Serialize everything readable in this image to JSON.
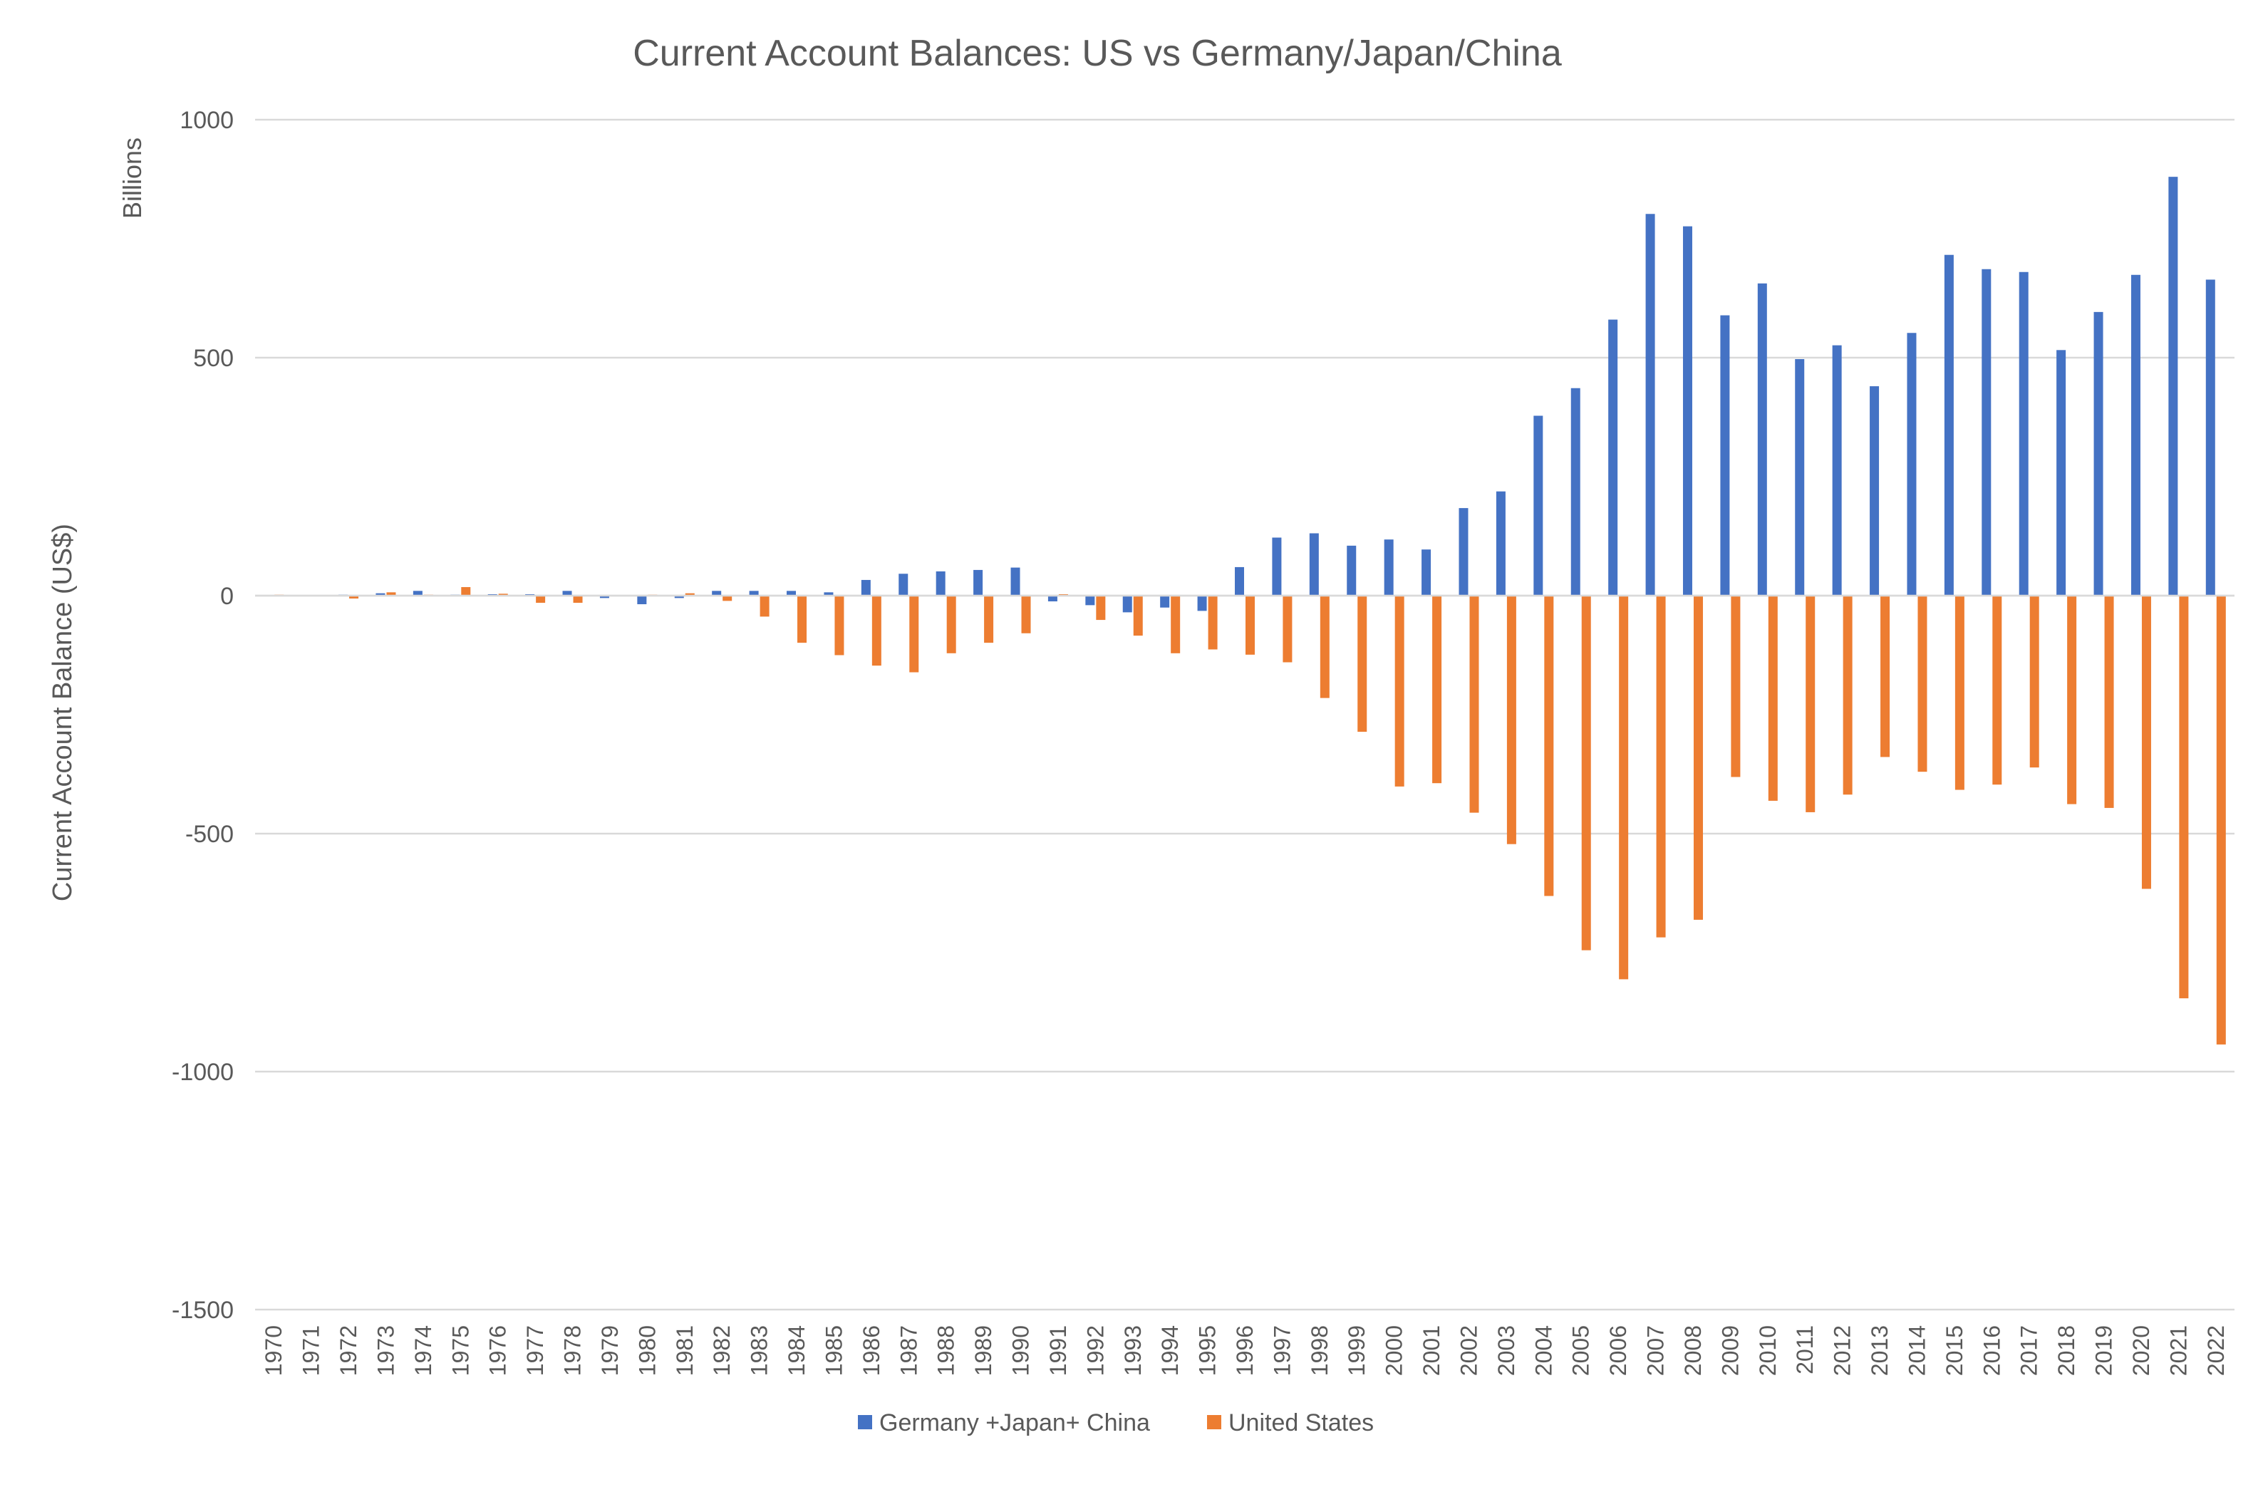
{
  "chart_data": {
    "type": "bar",
    "title": "Current Account Balances: US vs Germany/Japan/China",
    "ylabel": "Current Account Balance (US$)",
    "yunit_label": "Billions",
    "xlabel": "",
    "ylim": [
      -1500,
      1000
    ],
    "yticks": [
      1000,
      500,
      0,
      -500,
      -1000,
      -1500
    ],
    "grid": true,
    "legend_position": "bottom",
    "categories": [
      "1970",
      "1971",
      "1972",
      "1973",
      "1974",
      "1975",
      "1976",
      "1977",
      "1978",
      "1979",
      "1980",
      "1981",
      "1982",
      "1983",
      "1984",
      "1985",
      "1986",
      "1987",
      "1988",
      "1989",
      "1990",
      "1991",
      "1992",
      "1993",
      "1994",
      "1995",
      "1996",
      "1997",
      "1998",
      "1999",
      "2000",
      "2001",
      "2002",
      "2003",
      "2004",
      "2005",
      "2006",
      "2007",
      "2008",
      "2009",
      "2010",
      "2011",
      "2012",
      "2013",
      "2014",
      "2015",
      "2016",
      "2017",
      "2018",
      "2019",
      "2020",
      "2021",
      "2022"
    ],
    "series": [
      {
        "name": "Germany +Japan+ China",
        "color": "#4472C4",
        "values": [
          1,
          1,
          2,
          5,
          10,
          2,
          3,
          3,
          10,
          -5,
          -18,
          -5,
          10,
          10,
          10,
          7,
          33,
          46,
          51,
          54,
          59,
          -12,
          -20,
          -35,
          -25,
          -32,
          60,
          122,
          131,
          105,
          118,
          97,
          184,
          219,
          378,
          436,
          580,
          802,
          776,
          589,
          656,
          497,
          526,
          440,
          552,
          716,
          686,
          680,
          516,
          596,
          674,
          880,
          664
        ]
      },
      {
        "name": "United States",
        "color": "#ED7D31",
        "values": [
          2,
          -1,
          -6,
          7,
          2,
          18,
          4,
          -15,
          -15,
          0,
          2,
          5,
          -11,
          -44,
          -99,
          -125,
          -147,
          -161,
          -121,
          -99,
          -79,
          3,
          -51,
          -84,
          -121,
          -113,
          -124,
          -140,
          -215,
          -286,
          -401,
          -394,
          -456,
          -522,
          -631,
          -745,
          -806,
          -718,
          -681,
          -381,
          -431,
          -455,
          -418,
          -339,
          -370,
          -408,
          -397,
          -361,
          -438,
          -446,
          -616,
          -846,
          -943
        ]
      }
    ]
  }
}
